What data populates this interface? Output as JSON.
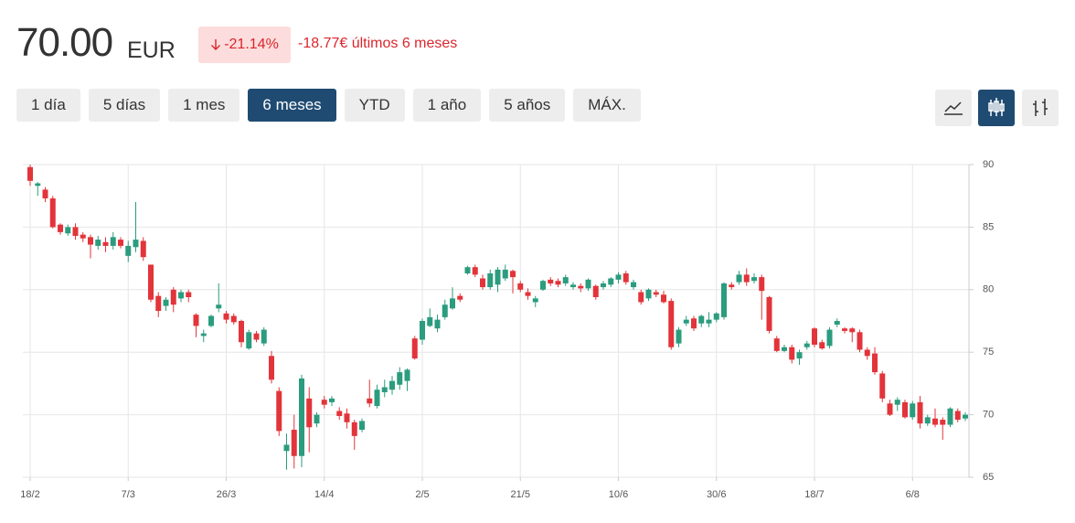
{
  "header": {
    "price": "70.00",
    "currency": "EUR",
    "change_percent": "-21.14%",
    "change_text": "-18.77€ últimos 6 meses"
  },
  "range_buttons": [
    "1 día",
    "5 días",
    "1 mes",
    "6 meses",
    "YTD",
    "1 año",
    "5 años",
    "MÁX."
  ],
  "active_range": 3,
  "chart_data": {
    "type": "candlestick",
    "categories": [
      "18/2",
      null,
      null,
      null,
      null,
      null,
      null,
      null,
      null,
      null,
      null,
      null,
      null,
      "7/3",
      null,
      null,
      null,
      null,
      null,
      null,
      null,
      null,
      null,
      null,
      null,
      null,
      "26/3",
      null,
      null,
      null,
      null,
      null,
      null,
      null,
      null,
      null,
      null,
      null,
      null,
      "14/4",
      null,
      null,
      null,
      null,
      null,
      null,
      null,
      null,
      null,
      null,
      null,
      null,
      "2/5",
      null,
      null,
      null,
      null,
      null,
      null,
      null,
      null,
      null,
      null,
      null,
      null,
      "21/5",
      null,
      null,
      null,
      null,
      null,
      null,
      null,
      null,
      null,
      null,
      null,
      null,
      "10/6",
      null,
      null,
      null,
      null,
      null,
      null,
      null,
      null,
      null,
      null,
      null,
      null,
      "30/6",
      null,
      null,
      null,
      null,
      null,
      null,
      null,
      null,
      null,
      null,
      null,
      null,
      "18/7",
      null,
      null,
      null,
      null,
      null,
      null,
      null,
      null,
      null,
      null,
      null,
      null,
      "6/8",
      null,
      null,
      null,
      null,
      null,
      null,
      null
    ],
    "open": [
      89.8,
      88.3,
      88.0,
      87.3,
      85.2,
      84.5,
      85.0,
      84.4,
      84.2,
      83.5,
      83.8,
      83.5,
      84.0,
      82.7,
      83.4,
      83.9,
      82.0,
      79.5,
      78.7,
      80.0,
      79.3,
      79.8,
      78.0,
      76.3,
      77.1,
      78.5,
      78.1,
      77.9,
      77.5,
      75.3,
      76.5,
      75.7,
      74.7,
      71.9,
      67.1,
      68.8,
      66.7,
      71.3,
      69.3,
      71.2,
      71.0,
      70.3,
      70.1,
      69.4,
      68.8,
      71.3,
      70.7,
      71.8,
      72.0,
      72.4,
      72.7,
      76.1,
      76.0,
      77.1,
      76.9,
      77.8,
      78.5,
      79.5,
      81.3,
      81.8,
      80.9,
      80.2,
      80.4,
      80.9,
      81.5,
      80.5,
      79.8,
      79.0,
      80.0,
      80.8,
      80.7,
      80.5,
      80.2,
      80.3,
      80.1,
      80.3,
      80.2,
      80.4,
      80.8,
      81.3,
      80.2,
      79.8,
      79.3,
      79.8,
      79.6,
      79.1,
      75.7,
      77.3,
      77.7,
      77.3,
      77.3,
      77.6,
      77.8,
      80.4,
      80.6,
      81.2,
      80.7,
      81.0,
      79.4,
      76.1,
      75.1,
      75.4,
      74.5,
      75.4,
      76.9,
      75.8,
      75.5,
      77.2,
      76.9,
      76.9,
      76.6,
      75.2,
      74.9,
      73.3,
      70.9,
      70.8,
      71.0,
      69.8,
      71.0,
      69.3,
      69.7,
      69.6,
      69.2,
      70.3,
      69.7
    ],
    "high": [
      90.0,
      88.6,
      88.2,
      87.5,
      85.3,
      85.2,
      85.3,
      84.6,
      84.4,
      84.3,
      84.2,
      84.6,
      84.2,
      83.9,
      87.0,
      84.2,
      82.0,
      79.8,
      79.4,
      80.2,
      80.0,
      80.0,
      78.1,
      76.8,
      78.0,
      80.5,
      78.3,
      78.1,
      77.6,
      76.8,
      76.7,
      77.0,
      75.1,
      72.2,
      68.5,
      70.0,
      73.2,
      72.2,
      70.2,
      71.5,
      71.5,
      70.6,
      70.5,
      69.6,
      69.7,
      72.8,
      72.4,
      72.8,
      73.1,
      73.8,
      73.7,
      76.3,
      77.7,
      78.5,
      78.0,
      79.2,
      80.2,
      79.7,
      81.9,
      82.0,
      81.2,
      81.6,
      81.8,
      82.0,
      81.6,
      80.7,
      80.1,
      79.5,
      80.8,
      81.0,
      80.9,
      81.2,
      80.6,
      80.5,
      80.9,
      80.4,
      80.7,
      81.0,
      81.4,
      81.5,
      80.8,
      80.0,
      80.1,
      80.0,
      79.9,
      79.3,
      77.0,
      77.9,
      77.9,
      78.0,
      78.2,
      78.2,
      80.6,
      80.6,
      81.5,
      81.7,
      81.3,
      81.2,
      79.5,
      76.3,
      75.6,
      75.6,
      75.2,
      75.9,
      77.0,
      76.0,
      77.0,
      77.7,
      77.0,
      77.0,
      76.8,
      75.4,
      75.4,
      73.5,
      71.2,
      71.4,
      71.2,
      71.1,
      71.5,
      70.0,
      70.5,
      69.8,
      70.6,
      70.5,
      70.2
    ],
    "low": [
      88.3,
      87.5,
      87.0,
      84.9,
      84.4,
      84.3,
      84.0,
      83.8,
      82.5,
      83.2,
      83.0,
      83.2,
      83.3,
      82.2,
      83.0,
      82.3,
      79.0,
      77.8,
      78.3,
      78.2,
      79.0,
      79.0,
      76.2,
      75.8,
      77.0,
      78.2,
      77.3,
      77.2,
      75.4,
      75.2,
      75.8,
      75.5,
      72.5,
      68.3,
      65.6,
      65.7,
      65.8,
      67.0,
      69.0,
      70.5,
      70.7,
      69.6,
      68.9,
      67.2,
      68.6,
      70.6,
      70.5,
      71.4,
      71.6,
      72.0,
      71.9,
      74.4,
      75.6,
      77.0,
      76.6,
      77.6,
      78.4,
      79.0,
      81.2,
      81.0,
      80.0,
      80.0,
      79.8,
      80.7,
      79.7,
      79.8,
      79.2,
      78.6,
      79.9,
      80.3,
      80.2,
      80.3,
      80.0,
      79.8,
      79.9,
      79.2,
      80.0,
      80.2,
      80.5,
      80.4,
      80.0,
      78.8,
      79.1,
      79.4,
      78.9,
      75.2,
      75.4,
      77.1,
      76.7,
      77.0,
      77.0,
      77.4,
      77.6,
      80.0,
      80.4,
      80.3,
      80.5,
      77.6,
      76.5,
      75.0,
      75.0,
      74.1,
      74.0,
      75.2,
      75.4,
      75.2,
      75.3,
      77.0,
      76.5,
      75.8,
      75.0,
      74.4,
      73.2,
      71.0,
      69.9,
      70.3,
      69.7,
      69.6,
      68.9,
      69.1,
      69.0,
      68.0,
      69.0,
      69.4,
      69.5
    ],
    "close": [
      88.7,
      88.5,
      87.3,
      85.0,
      84.6,
      85.0,
      84.3,
      84.1,
      83.6,
      84.0,
      83.5,
      84.2,
      83.5,
      83.5,
      84.0,
      82.6,
      79.2,
      78.3,
      79.2,
      78.8,
      79.8,
      79.4,
      77.1,
      76.5,
      77.9,
      78.8,
      77.6,
      77.4,
      75.8,
      76.6,
      76.0,
      76.8,
      72.8,
      68.7,
      67.6,
      66.7,
      72.9,
      69.0,
      70.0,
      70.8,
      71.3,
      69.9,
      69.4,
      68.3,
      69.5,
      70.9,
      72.0,
      72.2,
      72.7,
      73.4,
      73.6,
      74.5,
      77.5,
      77.8,
      77.6,
      78.8,
      79.3,
      79.2,
      81.8,
      81.2,
      80.2,
      81.3,
      81.6,
      81.6,
      81.0,
      80.0,
      79.5,
      79.3,
      80.7,
      80.5,
      80.4,
      81.0,
      80.4,
      80.1,
      80.8,
      79.4,
      80.5,
      80.9,
      81.2,
      80.6,
      80.6,
      79.0,
      80.0,
      79.6,
      79.0,
      75.4,
      76.8,
      77.6,
      76.9,
      77.9,
      77.6,
      78.1,
      80.5,
      80.2,
      81.2,
      80.6,
      81.0,
      79.9,
      76.7,
      75.1,
      75.4,
      74.4,
      75.0,
      75.7,
      75.6,
      75.3,
      76.8,
      77.5,
      76.7,
      76.6,
      75.2,
      74.7,
      73.4,
      71.3,
      70.0,
      71.2,
      69.8,
      70.9,
      69.3,
      69.8,
      69.2,
      69.2,
      70.5,
      69.6,
      70.0
    ],
    "up_color": "#2b9c7e",
    "down_color": "#e2343a",
    "ylim": [
      65,
      90
    ],
    "yticks": [
      65,
      70,
      75,
      80,
      85,
      90
    ],
    "grid": true
  }
}
